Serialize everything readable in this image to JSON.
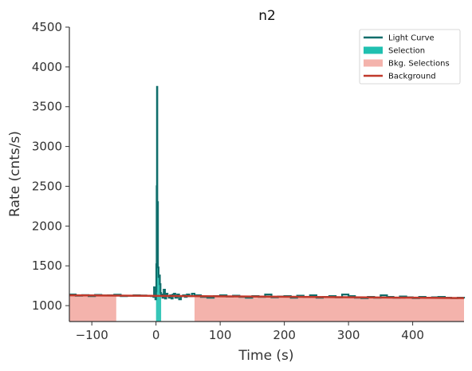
{
  "chart_data": {
    "type": "line",
    "title": "n2",
    "xlabel": "Time (s)",
    "ylabel": "Rate (cnts/s)",
    "xlim": [
      -135,
      480
    ],
    "ylim": [
      800,
      4500
    ],
    "xticks": [
      -100,
      0,
      100,
      200,
      300,
      400
    ],
    "yticks": [
      1000,
      1500,
      2000,
      2500,
      3000,
      3500,
      4000,
      4500
    ],
    "xtick_labels": [
      "−100",
      "0",
      "100",
      "200",
      "300",
      "400"
    ],
    "ytick_labels": [
      "1000",
      "1500",
      "2000",
      "2500",
      "3000",
      "3500",
      "4000",
      "4500"
    ],
    "legend_position": "upper-right",
    "grid": false,
    "colors": {
      "light_curve": "#0f6e6b",
      "selection": "#20c0b0",
      "bkg_selection": "#f4b3ac",
      "background": "#c0392b",
      "axis": "#333333"
    },
    "legend": [
      {
        "label": "Light Curve",
        "kind": "line",
        "color": "#0f6e6b"
      },
      {
        "label": "Selection",
        "kind": "patch",
        "color": "#20c0b0"
      },
      {
        "label": "Bkg. Selections",
        "kind": "patch",
        "color": "#f4b3ac"
      },
      {
        "label": "Background",
        "kind": "line",
        "color": "#c0392b"
      }
    ],
    "background_fit": {
      "name": "Background",
      "x": [
        -135,
        480
      ],
      "y": [
        1130,
        1095
      ]
    },
    "bkg_selections": [
      [
        -135,
        -62
      ],
      [
        60,
        480
      ]
    ],
    "source_selection": [
      0,
      8
    ],
    "light_curve": {
      "name": "Light Curve",
      "x": [
        -135,
        -125,
        -115,
        -105,
        -95,
        -85,
        -75,
        -65,
        -55,
        -45,
        -35,
        -25,
        -15,
        -8,
        -4,
        -3,
        -2,
        -1,
        0,
        0.5,
        1,
        1.5,
        2,
        3,
        4,
        5,
        6,
        7,
        8,
        10,
        12,
        14,
        16,
        18,
        20,
        22,
        24,
        26,
        28,
        30,
        33,
        36,
        39,
        42,
        45,
        48,
        52,
        56,
        60,
        70,
        80,
        90,
        100,
        110,
        120,
        130,
        140,
        150,
        160,
        170,
        180,
        190,
        200,
        210,
        220,
        230,
        240,
        250,
        260,
        270,
        280,
        290,
        300,
        310,
        320,
        330,
        340,
        350,
        360,
        370,
        380,
        390,
        400,
        410,
        420,
        430,
        440,
        450,
        460,
        470,
        480
      ],
      "y": [
        1140,
        1125,
        1132,
        1120,
        1135,
        1128,
        1130,
        1138,
        1120,
        1125,
        1130,
        1128,
        1124,
        1120,
        1110,
        1230,
        1150,
        1080,
        1180,
        1520,
        2500,
        3750,
        2300,
        1480,
        1360,
        1380,
        1270,
        1160,
        1140,
        1100,
        1200,
        1090,
        1150,
        1120,
        1100,
        1130,
        1090,
        1140,
        1150,
        1100,
        1140,
        1080,
        1120,
        1130,
        1110,
        1140,
        1120,
        1150,
        1130,
        1110,
        1100,
        1120,
        1130,
        1115,
        1125,
        1110,
        1100,
        1120,
        1110,
        1140,
        1105,
        1115,
        1120,
        1100,
        1125,
        1110,
        1130,
        1100,
        1110,
        1120,
        1105,
        1140,
        1120,
        1100,
        1095,
        1110,
        1100,
        1130,
        1110,
        1100,
        1115,
        1105,
        1095,
        1110,
        1100,
        1105,
        1110,
        1100,
        1095,
        1100,
        1090
      ]
    }
  }
}
